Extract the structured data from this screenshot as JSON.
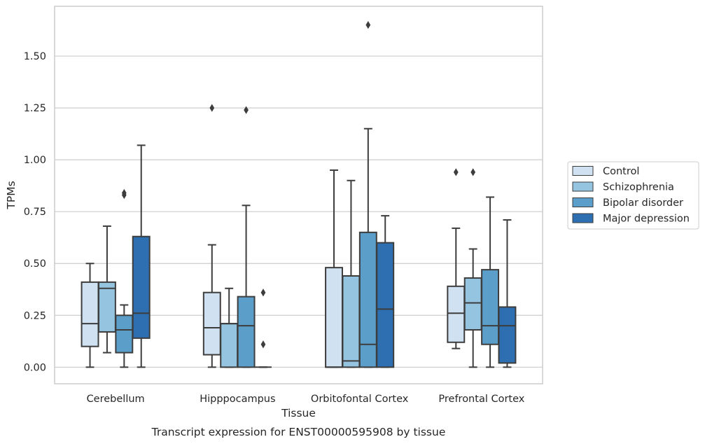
{
  "caption": "Transcript expression for ENST00000595908 by tissue",
  "chart_data": {
    "type": "box",
    "xlabel": "Tissue",
    "ylabel": "TPMs",
    "ylim": [
      -0.08,
      1.74
    ],
    "yticks": [
      "0.00",
      "0.25",
      "0.50",
      "0.75",
      "1.00",
      "1.25",
      "1.50"
    ],
    "categories": [
      "Cerebellum",
      "Hipppocampus",
      "Orbitofontal Cortex",
      "Prefrontal Cortex"
    ],
    "grid": "horizontal",
    "legend_position": "right",
    "series": [
      {
        "name": "Control",
        "color": "#d0e1f2",
        "boxes": [
          {
            "whislo": 0.0,
            "q1": 0.1,
            "med": 0.21,
            "q3": 0.41,
            "whishi": 0.5,
            "fliers": []
          },
          {
            "whislo": 0.0,
            "q1": 0.06,
            "med": 0.19,
            "q3": 0.36,
            "whishi": 0.59,
            "fliers": [
              1.25
            ]
          },
          {
            "whislo": 0.0,
            "q1": 0.0,
            "med": 0.0,
            "q3": 0.48,
            "whishi": 0.95,
            "fliers": []
          },
          {
            "whislo": 0.09,
            "q1": 0.12,
            "med": 0.26,
            "q3": 0.39,
            "whishi": 0.67,
            "fliers": [
              0.94
            ]
          }
        ]
      },
      {
        "name": "Schizophrenia",
        "color": "#94c4df",
        "boxes": [
          {
            "whislo": 0.07,
            "q1": 0.17,
            "med": 0.38,
            "q3": 0.41,
            "whishi": 0.68,
            "fliers": []
          },
          {
            "whislo": 0.0,
            "q1": 0.0,
            "med": 0.21,
            "q3": 0.21,
            "whishi": 0.38,
            "fliers": []
          },
          {
            "whislo": 0.0,
            "q1": 0.0,
            "med": 0.03,
            "q3": 0.44,
            "whishi": 0.9,
            "fliers": []
          },
          {
            "whislo": 0.0,
            "q1": 0.18,
            "med": 0.31,
            "q3": 0.43,
            "whishi": 0.57,
            "fliers": [
              0.94
            ]
          }
        ]
      },
      {
        "name": "Bipolar disorder",
        "color": "#5a9ec9",
        "boxes": [
          {
            "whislo": 0.0,
            "q1": 0.07,
            "med": 0.18,
            "q3": 0.25,
            "whishi": 0.3,
            "fliers": [
              0.83,
              0.84
            ]
          },
          {
            "whislo": 0.0,
            "q1": 0.0,
            "med": 0.2,
            "q3": 0.34,
            "whishi": 0.78,
            "fliers": [
              1.24
            ]
          },
          {
            "whislo": 0.0,
            "q1": 0.0,
            "med": 0.11,
            "q3": 0.65,
            "whishi": 1.15,
            "fliers": [
              1.65
            ]
          },
          {
            "whislo": 0.0,
            "q1": 0.11,
            "med": 0.2,
            "q3": 0.47,
            "whishi": 0.82,
            "fliers": []
          }
        ]
      },
      {
        "name": "Major depression",
        "color": "#2d6fb0",
        "boxes": [
          {
            "whislo": 0.0,
            "q1": 0.14,
            "med": 0.26,
            "q3": 0.63,
            "whishi": 1.07,
            "fliers": []
          },
          {
            "whislo": 0.0,
            "q1": 0.0,
            "med": 0.0,
            "q3": 0.0,
            "whishi": 0.0,
            "fliers": [
              0.36,
              0.11
            ]
          },
          {
            "whislo": 0.0,
            "q1": 0.0,
            "med": 0.28,
            "q3": 0.6,
            "whishi": 0.73,
            "fliers": []
          },
          {
            "whislo": 0.0,
            "q1": 0.02,
            "med": 0.2,
            "q3": 0.29,
            "whishi": 0.71,
            "fliers": []
          }
        ]
      }
    ]
  }
}
